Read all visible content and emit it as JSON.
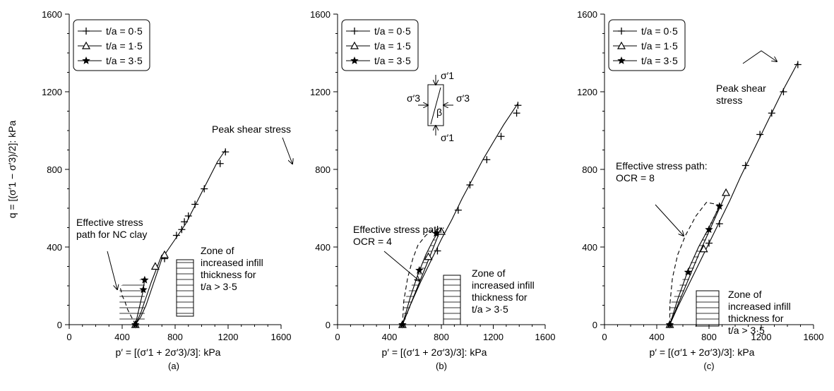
{
  "figure": {
    "y_axis_label": "q = [(σ′1 − σ′3)/2]: kPa",
    "x_axis_label": "p′ = [(σ′1 + 2σ′3)/3]: kPa"
  },
  "chart_data": [
    {
      "type": "line",
      "panel": "(a)",
      "xlim": [
        0,
        1600
      ],
      "ylim": [
        0,
        1600
      ],
      "xticks": [
        "0",
        "400",
        "800",
        "1200",
        "1600"
      ],
      "yticks": [
        "0",
        "400",
        "800",
        "1200",
        "1600"
      ],
      "legend": [
        "t/a = 0·5",
        "t/a = 1·5",
        "t/a = 3·5"
      ],
      "legend_position": "top-left",
      "series": [
        {
          "name": "t/a = 0·5",
          "marker": "plus",
          "x": [
            500,
            540,
            580,
            620,
            660,
            700,
            760,
            820,
            880,
            940,
            1000,
            1060,
            1120,
            1180
          ],
          "y": [
            0,
            40,
            100,
            180,
            260,
            340,
            400,
            460,
            520,
            600,
            680,
            760,
            840,
            900
          ],
          "markers_x": [
            500,
            720,
            810,
            850,
            870,
            900,
            950,
            1020,
            1140,
            1180
          ],
          "markers_y": [
            0,
            340,
            460,
            490,
            530,
            560,
            620,
            700,
            830,
            890
          ]
        },
        {
          "name": "t/a = 1·5",
          "marker": "triangle",
          "x": [
            500,
            540,
            580,
            620,
            660,
            700
          ],
          "y": [
            0,
            60,
            140,
            220,
            290,
            360
          ],
          "markers_x": [
            500,
            650,
            720
          ],
          "markers_y": [
            0,
            300,
            360
          ]
        },
        {
          "name": "t/a = 3·5",
          "marker": "star",
          "x": [
            500,
            520,
            540,
            560,
            570
          ],
          "y": [
            0,
            60,
            120,
            180,
            240
          ],
          "markers_x": [
            500,
            560,
            570
          ],
          "markers_y": [
            0,
            180,
            230
          ]
        },
        {
          "name": "",
          "style": "dashed",
          "x": [
            500,
            470,
            440,
            420,
            400,
            390,
            380
          ],
          "y": [
            0,
            40,
            80,
            120,
            150,
            180,
            200
          ],
          "markers_x": [],
          "markers_y": []
        }
      ],
      "zone": {
        "x": [
          380,
          570
        ],
        "y_lower": [
          0,
          0
        ],
        "y_upper": [
          200,
          240
        ]
      },
      "annotations": [
        {
          "text": "Peak shear stress",
          "x": 1000,
          "y": 1000
        },
        {
          "text": "Effective stress path for NC clay",
          "x": 220,
          "y": 550
        },
        {
          "text": "Zone of increased infill thickness for t/a > 3·5",
          "x": 820,
          "y": 300
        }
      ]
    },
    {
      "type": "line",
      "panel": "(b)",
      "xlim": [
        0,
        1600
      ],
      "ylim": [
        0,
        1600
      ],
      "xticks": [
        "0",
        "400",
        "800",
        "1200",
        "1600"
      ],
      "yticks": [
        "0",
        "400",
        "800",
        "1200",
        "1600"
      ],
      "legend": [
        "t/a = 0·5",
        "t/a = 1·5",
        "t/a = 3·5"
      ],
      "legend_position": "top-left",
      "series": [
        {
          "name": "t/a = 0·5",
          "marker": "plus",
          "x": [
            500,
            560,
            640,
            720,
            800,
            880,
            960,
            1040,
            1120,
            1200,
            1280,
            1360,
            1390
          ],
          "y": [
            0,
            100,
            220,
            330,
            440,
            540,
            650,
            750,
            850,
            940,
            1030,
            1110,
            1140
          ],
          "markers_x": [
            500,
            770,
            930,
            1020,
            1150,
            1260,
            1380,
            1390
          ],
          "markers_y": [
            0,
            380,
            590,
            720,
            850,
            970,
            1090,
            1130
          ]
        },
        {
          "name": "t/a = 1·5",
          "marker": "triangle",
          "x": [
            500,
            560,
            620,
            680,
            740,
            800
          ],
          "y": [
            0,
            100,
            200,
            300,
            400,
            500
          ],
          "markers_x": [
            500,
            700,
            800
          ],
          "markers_y": [
            0,
            350,
            480
          ]
        },
        {
          "name": "t/a = 3·5",
          "marker": "star",
          "x": [
            500,
            560,
            620,
            680,
            740,
            780
          ],
          "y": [
            0,
            140,
            260,
            360,
            440,
            480
          ],
          "markers_x": [
            500,
            630,
            760
          ],
          "markers_y": [
            0,
            280,
            470
          ]
        },
        {
          "name": "",
          "style": "dashed",
          "x": [
            500,
            510,
            540,
            580,
            620,
            680,
            740,
            780
          ],
          "y": [
            0,
            120,
            240,
            340,
            410,
            460,
            490,
            490
          ],
          "markers_x": [],
          "markers_y": []
        }
      ],
      "zone": {
        "x": [
          510,
          780
        ],
        "y_lower": [
          0,
          480
        ],
        "y_upper": [
          120,
          490
        ]
      },
      "annotations": [
        {
          "text": "Effective stress path: OCR = 4",
          "x": 280,
          "y": 750
        },
        {
          "text": "Zone of increased infill thickness for t/a > 3·5",
          "x": 800,
          "y": 300
        }
      ],
      "inset_labels": [
        "σ′1",
        "σ′3",
        "σ′3",
        "β",
        "σ′1"
      ]
    },
    {
      "type": "line",
      "panel": "(c)",
      "xlim": [
        0,
        1600
      ],
      "ylim": [
        0,
        1600
      ],
      "xticks": [
        "0",
        "400",
        "800",
        "1200",
        "1600"
      ],
      "yticks": [
        "0",
        "400",
        "800",
        "1200",
        "1600"
      ],
      "legend": [
        "t/a = 0·5",
        "t/a = 1·5",
        "t/a = 3·5"
      ],
      "legend_position": "top-left",
      "series": [
        {
          "name": "t/a = 0·5",
          "marker": "plus",
          "x": [
            500,
            560,
            640,
            720,
            800,
            880,
            960,
            1040,
            1120,
            1200,
            1280,
            1360,
            1440,
            1480
          ],
          "y": [
            0,
            90,
            200,
            310,
            420,
            530,
            640,
            760,
            870,
            980,
            1090,
            1200,
            1300,
            1350
          ],
          "markers_x": [
            500,
            800,
            880,
            1080,
            1190,
            1280,
            1370,
            1480
          ],
          "markers_y": [
            0,
            420,
            520,
            820,
            980,
            1090,
            1200,
            1340
          ]
        },
        {
          "name": "t/a = 1·5",
          "marker": "triangle",
          "x": [
            500,
            560,
            640,
            720,
            800,
            880,
            940
          ],
          "y": [
            0,
            100,
            230,
            360,
            480,
            600,
            690
          ],
          "markers_x": [
            500,
            760,
            930
          ],
          "markers_y": [
            0,
            390,
            680
          ]
        },
        {
          "name": "t/a = 3·5",
          "marker": "star",
          "x": [
            500,
            560,
            640,
            720,
            800,
            880
          ],
          "y": [
            0,
            130,
            280,
            400,
            500,
            610
          ],
          "markers_x": [
            500,
            640,
            800,
            880
          ],
          "markers_y": [
            0,
            270,
            490,
            610
          ]
        },
        {
          "name": "",
          "style": "dashed",
          "x": [
            500,
            500,
            520,
            560,
            620,
            700,
            780,
            860,
            880
          ],
          "y": [
            0,
            100,
            240,
            360,
            460,
            560,
            630,
            620,
            610
          ],
          "markers_x": [],
          "markers_y": []
        }
      ],
      "zone": {
        "x": [
          500,
          880
        ],
        "y_lower": [
          0,
          600
        ],
        "y_upper": [
          100,
          620
        ]
      },
      "annotations": [
        {
          "text": "Peak shear stress",
          "x": 1150,
          "y": 1300
        },
        {
          "text": "Effective stress path: OCR = 8",
          "x": 200,
          "y": 900
        },
        {
          "text": "Zone of increased infill thickness for t/a > 3·5",
          "x": 850,
          "y": 300
        }
      ]
    }
  ]
}
